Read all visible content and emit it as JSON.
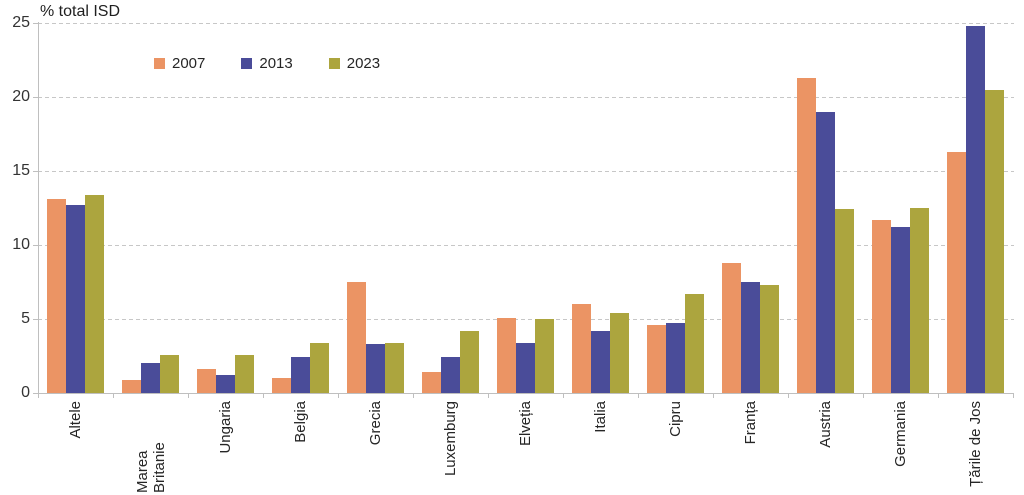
{
  "chart_data": {
    "type": "bar",
    "title": "% total ISD",
    "categories": [
      "Altele",
      "Marea Britanie",
      "Ungaria",
      "Belgia",
      "Grecia",
      "Luxemburg",
      "Elveția",
      "Italia",
      "Cipru",
      "Franța",
      "Austria",
      "Germania",
      "Țările de Jos"
    ],
    "series": [
      {
        "name": "2007",
        "color": "#EB9464",
        "values": [
          13.1,
          0.9,
          1.6,
          1.0,
          7.5,
          1.4,
          5.1,
          6.0,
          4.6,
          8.8,
          21.3,
          11.7,
          16.3
        ]
      },
      {
        "name": "2013",
        "color": "#4A4C99",
        "values": [
          12.7,
          2.0,
          1.2,
          2.4,
          3.3,
          2.4,
          3.4,
          4.2,
          4.7,
          7.5,
          19.0,
          11.2,
          24.8
        ]
      },
      {
        "name": "2023",
        "color": "#ACA53E",
        "values": [
          13.4,
          2.6,
          2.6,
          3.4,
          3.4,
          4.2,
          5.0,
          5.4,
          6.7,
          7.3,
          12.4,
          12.5,
          20.5
        ]
      }
    ],
    "xlabel": "",
    "ylabel": "% total ISD",
    "ylim": [
      0,
      25
    ],
    "yticks": [
      0,
      5,
      10,
      15,
      20,
      25
    ],
    "grid": "horizontal-dashed",
    "legend_position": "top"
  },
  "colors": {
    "axis": "#BFBFBF",
    "gridline": "#C7C7C7",
    "text": "#262626"
  }
}
